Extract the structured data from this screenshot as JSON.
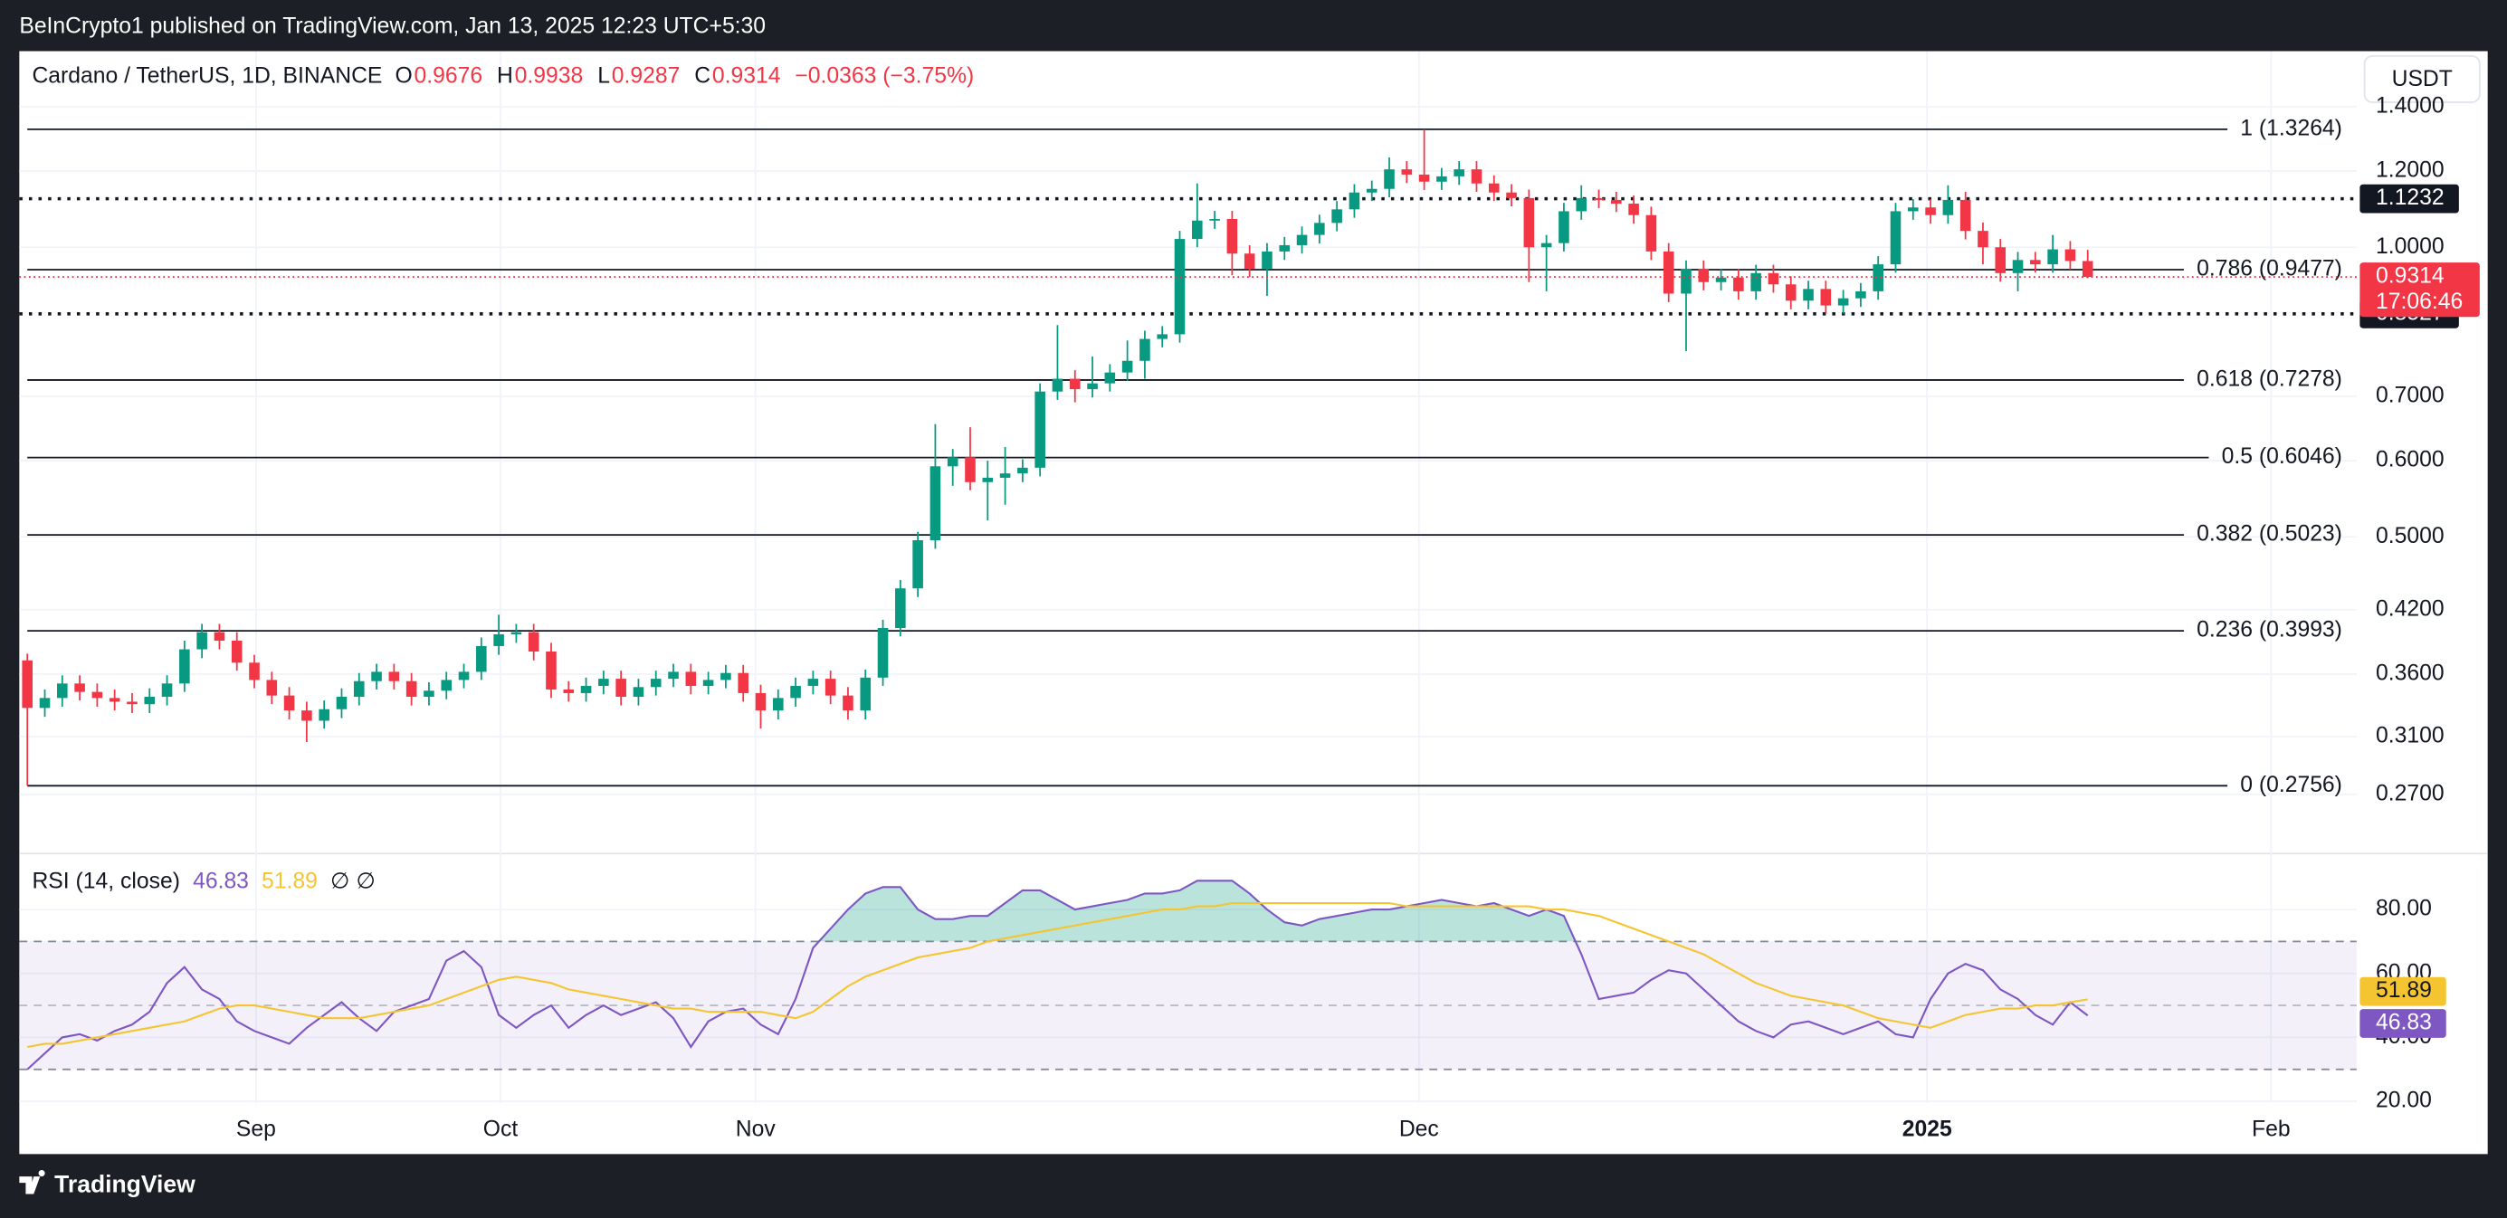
{
  "header": {
    "publisher": "BeInCrypto1 published on TradingView.com, Jan 13, 2025 12:23 UTC+5:30",
    "currency_button": "USDT",
    "footer_logo": "TradingView"
  },
  "chart_data": [
    {
      "type": "candlestick",
      "title": "Cardano / TetherUS, 1D, BINANCE",
      "ohlc_labels": [
        "O",
        "H",
        "L",
        "C"
      ],
      "change": "−0.0363 (−3.75%)",
      "countdown": "17:06:46",
      "up_color": "#089981",
      "down_color": "#f23645",
      "open": [
        0.372,
        0.332,
        0.34,
        0.352,
        0.345,
        0.34,
        0.337,
        0.335,
        0.341,
        0.352,
        0.382,
        0.398,
        0.39,
        0.37,
        0.355,
        0.342,
        0.33,
        0.322,
        0.331,
        0.341,
        0.354,
        0.362,
        0.354,
        0.341,
        0.346,
        0.355,
        0.362,
        0.385,
        0.396,
        0.398,
        0.38,
        0.347,
        0.344,
        0.35,
        0.356,
        0.341,
        0.349,
        0.356,
        0.362,
        0.35,
        0.355,
        0.361,
        0.344,
        0.33,
        0.34,
        0.35,
        0.356,
        0.342,
        0.33,
        0.357,
        0.402,
        0.442,
        0.496,
        0.592,
        0.605,
        0.57,
        0.576,
        0.582,
        0.59,
        0.708,
        0.73,
        0.712,
        0.722,
        0.741,
        0.762,
        0.803,
        0.812,
        1.02,
        1.066,
        1.07,
        0.985,
        0.95,
        0.99,
        1.005,
        1.03,
        1.06,
        1.095,
        1.14,
        1.15,
        1.205,
        1.19,
        1.17,
        1.185,
        1.205,
        1.165,
        1.14,
        1.125,
        1.0,
        1.01,
        1.09,
        1.125,
        1.12,
        1.11,
        1.08,
        0.99,
        0.895,
        0.95,
        0.92,
        0.93,
        0.9,
        0.94,
        0.915,
        0.88,
        0.905,
        0.87,
        0.885,
        0.9,
        0.96,
        1.09,
        1.1,
        1.08,
        1.12,
        1.04,
        1.0,
        0.94,
        0.97,
        0.96,
        0.995,
        0.9676
      ],
      "high": [
        0.378,
        0.347,
        0.359,
        0.359,
        0.352,
        0.347,
        0.344,
        0.348,
        0.359,
        0.39,
        0.406,
        0.406,
        0.398,
        0.377,
        0.362,
        0.349,
        0.337,
        0.338,
        0.348,
        0.361,
        0.369,
        0.369,
        0.361,
        0.353,
        0.362,
        0.369,
        0.393,
        0.415,
        0.406,
        0.406,
        0.388,
        0.354,
        0.357,
        0.363,
        0.363,
        0.356,
        0.363,
        0.369,
        0.369,
        0.362,
        0.368,
        0.368,
        0.351,
        0.347,
        0.357,
        0.363,
        0.363,
        0.349,
        0.364,
        0.41,
        0.451,
        0.506,
        0.655,
        0.617,
        0.65,
        0.6,
        0.62,
        0.602,
        0.722,
        0.83,
        0.745,
        0.77,
        0.756,
        0.8,
        0.819,
        0.828,
        1.04,
        1.165,
        1.091,
        1.091,
        1.005,
        1.01,
        1.025,
        1.051,
        1.081,
        1.117,
        1.163,
        1.173,
        1.24,
        1.229,
        1.326,
        1.209,
        1.229,
        1.229,
        1.188,
        1.163,
        1.148,
        1.03,
        1.112,
        1.16,
        1.148,
        1.142,
        1.132,
        1.102,
        1.01,
        0.969,
        0.969,
        0.949,
        0.949,
        0.959,
        0.959,
        0.933,
        0.923,
        0.923,
        0.903,
        0.918,
        0.979,
        1.112,
        1.122,
        1.122,
        1.16,
        1.142,
        1.061,
        1.02,
        0.989,
        0.989,
        1.03,
        1.015,
        0.9938
      ],
      "low": [
        0.2756,
        0.325,
        0.333,
        0.338,
        0.333,
        0.33,
        0.328,
        0.328,
        0.334,
        0.345,
        0.374,
        0.382,
        0.363,
        0.348,
        0.335,
        0.323,
        0.306,
        0.316,
        0.324,
        0.334,
        0.347,
        0.347,
        0.334,
        0.334,
        0.339,
        0.348,
        0.355,
        0.377,
        0.388,
        0.372,
        0.34,
        0.337,
        0.337,
        0.343,
        0.334,
        0.334,
        0.342,
        0.349,
        0.343,
        0.343,
        0.348,
        0.337,
        0.316,
        0.323,
        0.333,
        0.343,
        0.335,
        0.323,
        0.323,
        0.35,
        0.394,
        0.433,
        0.486,
        0.565,
        0.559,
        0.52,
        0.54,
        0.57,
        0.578,
        0.694,
        0.69,
        0.698,
        0.708,
        0.726,
        0.73,
        0.787,
        0.796,
        1.0,
        1.045,
        0.935,
        0.931,
        0.89,
        0.97,
        0.985,
        1.009,
        1.039,
        1.073,
        1.117,
        1.127,
        1.166,
        1.147,
        1.147,
        1.161,
        1.142,
        1.117,
        1.103,
        0.92,
        0.9,
        0.99,
        1.068,
        1.098,
        1.088,
        1.058,
        0.97,
        0.877,
        0.78,
        0.902,
        0.902,
        0.882,
        0.882,
        0.897,
        0.862,
        0.862,
        0.853,
        0.853,
        0.867,
        0.882,
        0.941,
        1.068,
        1.058,
        1.058,
        1.019,
        0.96,
        0.921,
        0.9,
        0.941,
        0.941,
        0.948,
        0.9287
      ],
      "close": [
        0.332,
        0.34,
        0.352,
        0.345,
        0.34,
        0.337,
        0.335,
        0.341,
        0.352,
        0.382,
        0.398,
        0.39,
        0.37,
        0.355,
        0.342,
        0.33,
        0.322,
        0.331,
        0.341,
        0.354,
        0.362,
        0.354,
        0.341,
        0.346,
        0.355,
        0.362,
        0.385,
        0.396,
        0.398,
        0.38,
        0.347,
        0.344,
        0.35,
        0.356,
        0.341,
        0.349,
        0.356,
        0.362,
        0.35,
        0.355,
        0.361,
        0.344,
        0.33,
        0.34,
        0.35,
        0.356,
        0.342,
        0.33,
        0.357,
        0.402,
        0.442,
        0.496,
        0.592,
        0.605,
        0.57,
        0.576,
        0.582,
        0.59,
        0.708,
        0.73,
        0.712,
        0.722,
        0.741,
        0.762,
        0.803,
        0.812,
        1.02,
        1.066,
        1.07,
        0.985,
        0.95,
        0.99,
        1.005,
        1.03,
        1.06,
        1.095,
        1.14,
        1.15,
        1.205,
        1.19,
        1.17,
        1.185,
        1.205,
        1.165,
        1.14,
        1.125,
        1.0,
        1.01,
        1.09,
        1.125,
        1.12,
        1.11,
        1.08,
        0.99,
        0.895,
        0.95,
        0.92,
        0.93,
        0.9,
        0.94,
        0.915,
        0.88,
        0.905,
        0.87,
        0.885,
        0.9,
        0.96,
        1.09,
        1.1,
        1.08,
        1.12,
        1.04,
        1.0,
        0.94,
        0.97,
        0.96,
        0.995,
        0.9676,
        0.9314
      ],
      "xlim": [
        -0.46,
        133.4
      ],
      "ylim": [
        0.2352,
        1.599
      ],
      "log_scale": true,
      "grid": true,
      "yticks": [
        {
          "value": 0.27,
          "label": "0.2700"
        },
        {
          "value": 0.31,
          "label": "0.3100"
        },
        {
          "value": 0.36,
          "label": "0.3600"
        },
        {
          "value": 0.42,
          "label": "0.4200"
        },
        {
          "value": 0.5,
          "label": "0.5000"
        },
        {
          "value": 0.6,
          "label": "0.6000"
        },
        {
          "value": 0.7,
          "label": "0.7000"
        },
        {
          "value": 1,
          "label": "1.0000"
        },
        {
          "value": 1.2,
          "label": "1.2000"
        },
        {
          "value": 1.4,
          "label": "1.4000"
        }
      ],
      "fib_levels": [
        {
          "value": 1.3264,
          "label": "1 (1.3264)"
        },
        {
          "value": 0.9477,
          "label": "0.786 (0.9477)"
        },
        {
          "value": 0.7278,
          "label": "0.618 (0.7278)"
        },
        {
          "value": 0.6046,
          "label": "0.5 (0.6046)"
        },
        {
          "value": 0.5023,
          "label": "0.382 (0.5023)"
        },
        {
          "value": 0.3993,
          "label": "0.236 (0.3993)"
        },
        {
          "value": 0.2756,
          "label": "0 (0.2756)"
        }
      ],
      "key_levels": [
        1.1232,
        0.8527
      ]
    },
    {
      "type": "line",
      "title": "RSI (14, close)",
      "legend_extra": "∅ ∅",
      "xlim": [
        -0.46,
        133.4
      ],
      "ylim": [
        19.5,
        97
      ],
      "grid": true,
      "yticks": [
        {
          "value": 20,
          "label": "20.00"
        },
        {
          "value": 40,
          "label": "40.00"
        },
        {
          "value": 60,
          "label": "60.00"
        },
        {
          "value": 80,
          "label": "80.00"
        }
      ],
      "xticks": [
        {
          "value": 13.1,
          "label": "Sep"
        },
        {
          "value": 27.1,
          "label": "Oct"
        },
        {
          "value": 41.7,
          "label": "Nov"
        },
        {
          "value": 79.7,
          "label": "Dec"
        },
        {
          "value": 108.8,
          "label": "2025"
        },
        {
          "value": 128.5,
          "label": "Feb"
        }
      ],
      "bands": [
        70,
        50,
        30
      ],
      "band_color": "#7e57c2",
      "overbought_color": "#089981",
      "series": [
        {
          "color": "#7e57c2",
          "values": [
            30,
            35,
            40,
            41,
            39,
            42,
            44,
            48,
            57,
            62,
            55,
            52,
            45,
            42,
            40,
            38,
            43,
            47,
            51,
            46,
            42,
            48,
            50,
            52,
            64,
            67,
            62,
            47,
            43,
            47,
            50,
            43,
            47,
            50,
            47,
            49,
            51,
            46,
            37,
            45,
            48,
            49,
            44,
            41,
            52,
            68,
            74,
            80,
            85,
            87,
            87,
            80,
            77,
            77,
            78,
            78,
            82,
            86,
            86,
            83,
            80,
            81,
            82,
            83,
            85,
            85,
            86,
            89,
            89,
            89,
            85,
            80,
            76,
            75,
            77,
            78,
            79,
            80,
            80,
            81,
            82,
            83,
            82,
            81,
            82,
            80,
            78,
            80,
            78,
            66,
            52,
            53,
            54,
            58,
            61,
            60,
            55,
            50,
            45,
            42,
            40,
            44,
            45,
            43,
            41,
            43,
            45,
            41,
            40,
            52,
            60,
            63,
            61,
            55,
            52,
            47,
            44,
            51,
            46.83
          ]
        },
        {
          "color": "#f5c531",
          "values": [
            37,
            38,
            38,
            39,
            40,
            41,
            42,
            43,
            44,
            45,
            47,
            49,
            50,
            50,
            49,
            48,
            47,
            46,
            46,
            46,
            47,
            48,
            49,
            50,
            52,
            54,
            56,
            58,
            59,
            58,
            57,
            55,
            54,
            53,
            52,
            51,
            50,
            49,
            49,
            48,
            48,
            48,
            48,
            47,
            46,
            48,
            52,
            56,
            59,
            61,
            63,
            65,
            66,
            67,
            68,
            70,
            71,
            72,
            73,
            74,
            75,
            76,
            77,
            78,
            79,
            80,
            80,
            81,
            81,
            82,
            82,
            82,
            82,
            82,
            82,
            82,
            82,
            82,
            82,
            81,
            81,
            81,
            81,
            81,
            81,
            81,
            81,
            80,
            80,
            79,
            78,
            76,
            74,
            72,
            70,
            68,
            66,
            63,
            60,
            57,
            55,
            53,
            52,
            51,
            50,
            48,
            46,
            45,
            44,
            43,
            45,
            47,
            48,
            49,
            49,
            50,
            50,
            51,
            51.89
          ]
        }
      ]
    }
  ]
}
